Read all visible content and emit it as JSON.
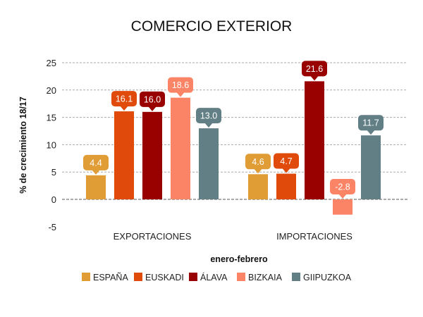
{
  "chart_data": {
    "type": "bar",
    "title": "COMERCIO EXTERIOR",
    "xlabel": "enero-febrero",
    "ylabel": "% de crecimiento 18/17",
    "ylim": [
      -5,
      25
    ],
    "yticks": [
      25,
      20,
      15,
      10,
      5,
      0,
      -5
    ],
    "ytick_labels": [
      "25",
      "20",
      "15",
      "10",
      "5",
      "0",
      "-5"
    ],
    "grid": true,
    "legend_position": "bottom",
    "categories": [
      "EXPORTACIONES",
      "IMPORTACIONES"
    ],
    "series": [
      {
        "name": "ESPAÑA",
        "color": "#e09c35",
        "values": [
          4.4,
          4.6
        ],
        "labels": [
          "4.4",
          "4.6"
        ]
      },
      {
        "name": "EUSKADI",
        "color": "#e04a0a",
        "values": [
          16.1,
          4.7
        ],
        "labels": [
          "16.1",
          "4.7"
        ]
      },
      {
        "name": "ÁLAVA",
        "color": "#990000",
        "values": [
          16.0,
          21.6
        ],
        "labels": [
          "16.0",
          "21.6"
        ]
      },
      {
        "name": "BIZKAIA",
        "color": "#fb8466",
        "values": [
          18.6,
          -2.8
        ],
        "labels": [
          "18.6",
          "-2.8"
        ]
      },
      {
        "name": "GIIPUZKOA",
        "color": "#627f85",
        "values": [
          13.0,
          11.7
        ],
        "labels": [
          "13.0",
          "11.7"
        ]
      }
    ]
  }
}
